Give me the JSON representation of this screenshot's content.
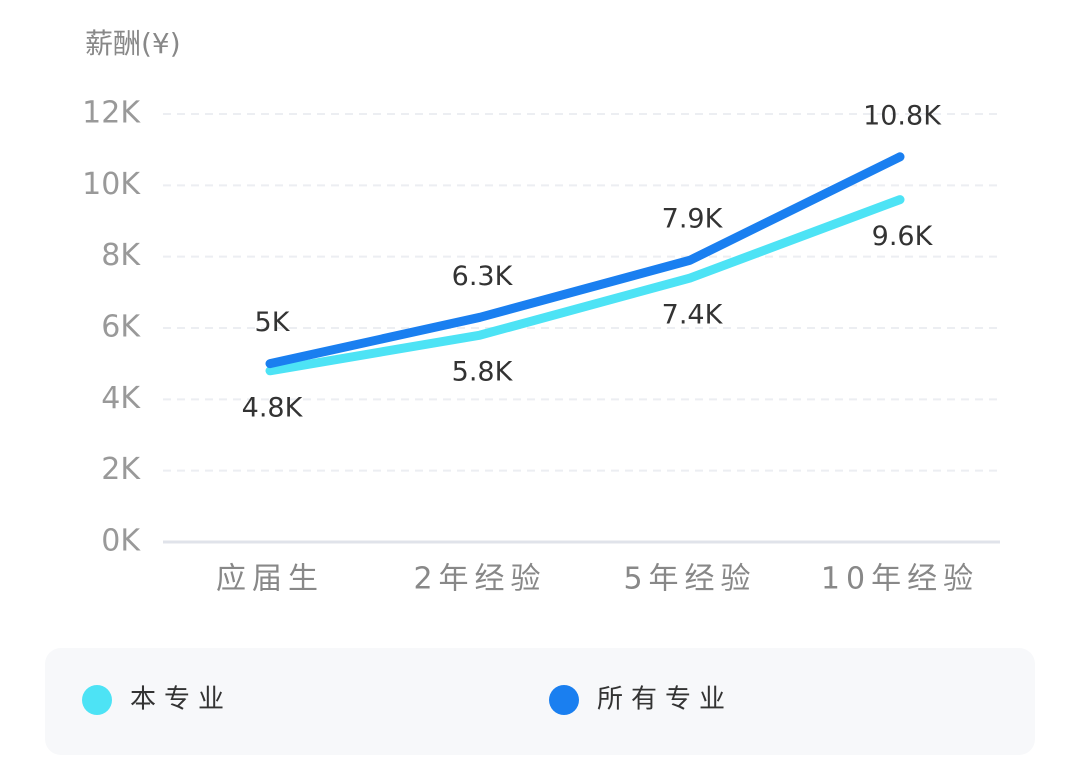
{
  "chart_data": {
    "type": "line",
    "y_label": "薪酬(¥)",
    "categories": [
      "应届生",
      "2年经验",
      "5年经验",
      "10年经验"
    ],
    "series": [
      {
        "name": "本专业",
        "color": "#4de3f5",
        "values": [
          4800,
          5800,
          7400,
          9600
        ],
        "value_labels": [
          "4.8K",
          "5.8K",
          "7.4K",
          "9.6K"
        ]
      },
      {
        "name": "所有专业",
        "color": "#1a7ff0",
        "values": [
          5000,
          6300,
          7900,
          10800
        ],
        "value_labels": [
          "5K",
          "6.3K",
          "7.9K",
          "10.8K"
        ]
      }
    ],
    "ylim": [
      0,
      12000
    ],
    "yticks": [
      {
        "value": 0,
        "label": "0K"
      },
      {
        "value": 2000,
        "label": "2K"
      },
      {
        "value": 4000,
        "label": "4K"
      },
      {
        "value": 6000,
        "label": "6K"
      },
      {
        "value": 8000,
        "label": "8K"
      },
      {
        "value": 10000,
        "label": "10K"
      },
      {
        "value": 12000,
        "label": "12K"
      }
    ],
    "grid": true
  }
}
